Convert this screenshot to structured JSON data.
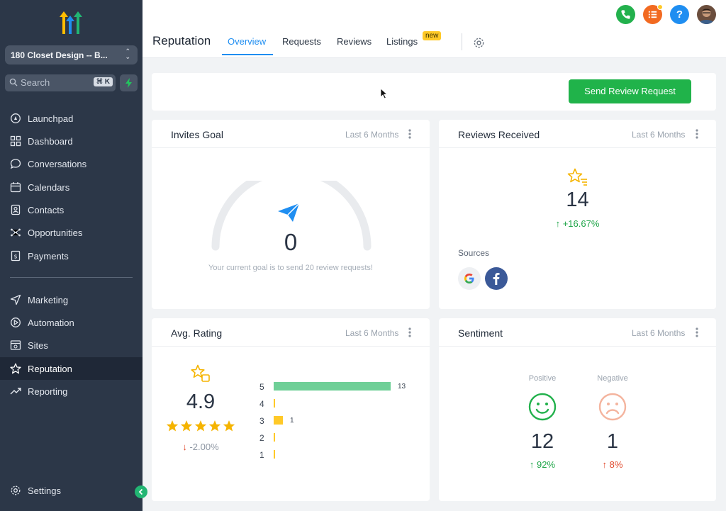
{
  "colors": {
    "sidebar_bg": "#2c3748",
    "accent_blue": "#1f8ef1",
    "accent_green": "#20b34a",
    "positive_green": "#21a64a",
    "negative_red": "#e0492c",
    "star_yellow": "#ffc928",
    "bar_green": "#6fcf97"
  },
  "sidebar": {
    "account_name": "180 Closet Design -- B...",
    "search_placeholder": "Search",
    "search_shortcut": "⌘ K",
    "items": [
      {
        "label": "Launchpad",
        "icon": "rocket-icon"
      },
      {
        "label": "Dashboard",
        "icon": "grid-icon"
      },
      {
        "label": "Conversations",
        "icon": "chat-bubble-icon"
      },
      {
        "label": "Calendars",
        "icon": "calendar-icon"
      },
      {
        "label": "Contacts",
        "icon": "contact-book-icon"
      },
      {
        "label": "Opportunities",
        "icon": "network-icon"
      },
      {
        "label": "Payments",
        "icon": "receipt-icon"
      },
      {
        "label": "Marketing",
        "icon": "send-icon"
      },
      {
        "label": "Automation",
        "icon": "play-circle-icon"
      },
      {
        "label": "Sites",
        "icon": "browser-icon"
      },
      {
        "label": "Reputation",
        "icon": "star-icon",
        "active": true
      },
      {
        "label": "Reporting",
        "icon": "trend-up-icon"
      }
    ],
    "settings_label": "Settings"
  },
  "header": {
    "title": "Reputation",
    "tabs": [
      {
        "label": "Overview",
        "active": true
      },
      {
        "label": "Requests"
      },
      {
        "label": "Reviews"
      },
      {
        "label": "Listings",
        "badge": "new"
      }
    ],
    "top_icons": [
      "phone-icon",
      "list-icon",
      "help-icon",
      "avatar"
    ],
    "help_glyph": "?"
  },
  "actions": {
    "send_review_request": "Send Review Request"
  },
  "invites_goal": {
    "title": "Invites Goal",
    "period": "Last 6 Months",
    "value": "0",
    "progress": 0,
    "goal_text": "Your current goal is to send 20 review requests!"
  },
  "reviews_received": {
    "title": "Reviews Received",
    "period": "Last 6 Months",
    "value": "14",
    "change": "+16.67%",
    "change_arrow": "↑",
    "sources_label": "Sources",
    "sources": [
      "google-icon",
      "facebook-icon"
    ]
  },
  "avg_rating": {
    "title": "Avg. Rating",
    "period": "Last 6 Months",
    "value": "4.9",
    "stars": 5,
    "change": "-2.00%",
    "change_arrow": "↓",
    "distribution": [
      {
        "stars": "5",
        "count": 13,
        "label": "13"
      },
      {
        "stars": "4",
        "count": 0,
        "label": ""
      },
      {
        "stars": "3",
        "count": 1,
        "label": "1"
      },
      {
        "stars": "2",
        "count": 0,
        "label": ""
      },
      {
        "stars": "1",
        "count": 0,
        "label": ""
      }
    ]
  },
  "sentiment": {
    "title": "Sentiment",
    "period": "Last 6 Months",
    "positive_label": "Positive",
    "positive_value": "12",
    "positive_change": "92%",
    "positive_arrow": "↑",
    "negative_label": "Negative",
    "negative_value": "1",
    "negative_change": "8%",
    "negative_arrow": "↑"
  }
}
